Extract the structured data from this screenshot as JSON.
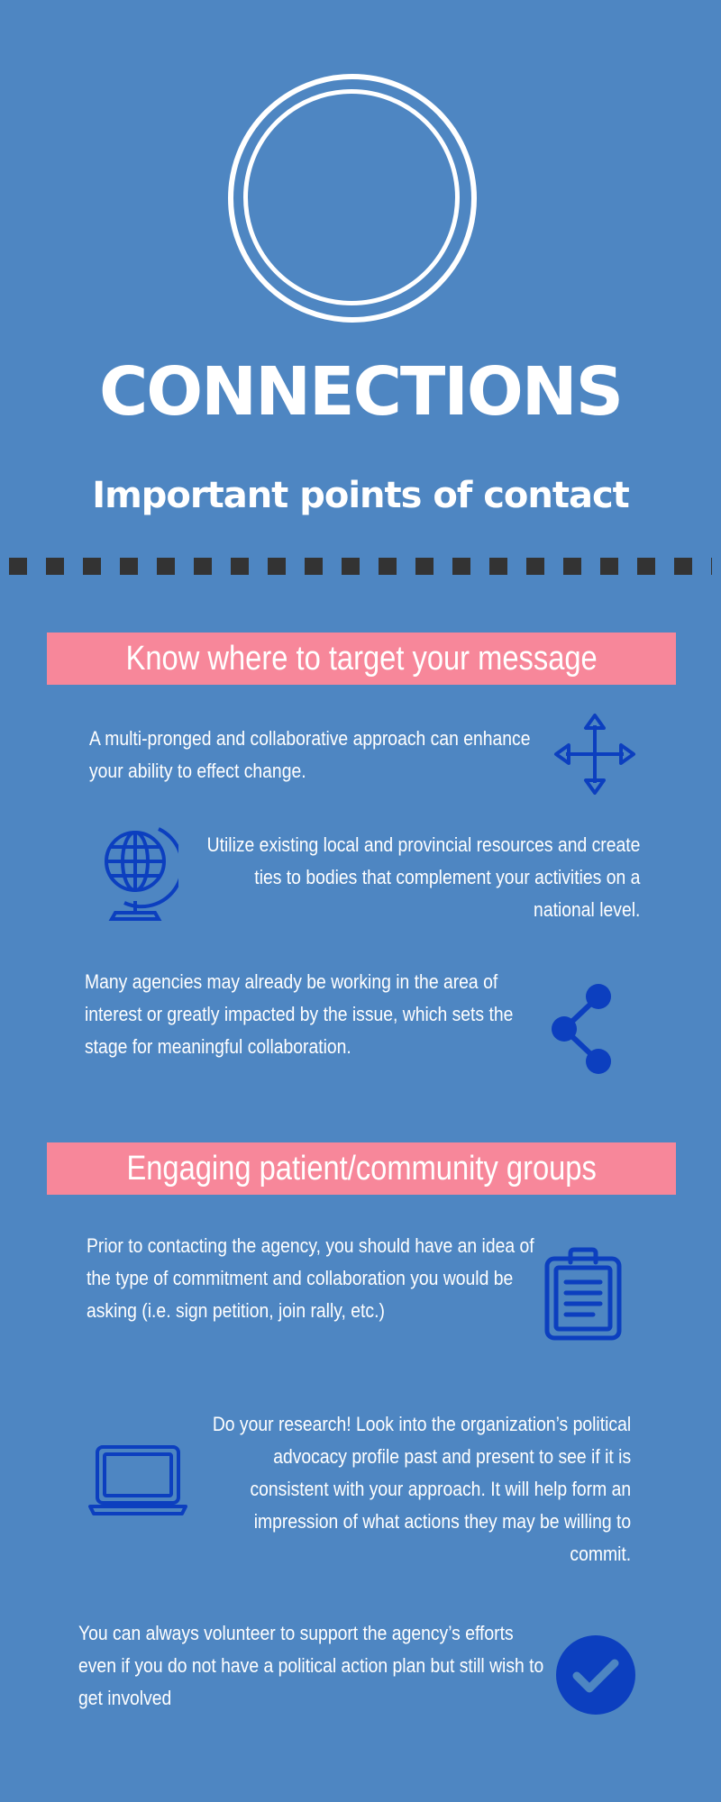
{
  "header": {
    "title": "CONNECTIONS",
    "subtitle": "Important points of contact"
  },
  "sections": [
    {
      "heading": "Know where to target your message",
      "items": [
        {
          "text": "A multi-pronged and collaborative approach can enhance your ability to effect change.",
          "icon": "move-arrows-icon"
        },
        {
          "text": "Utilize existing local and provincial resources and create ties to bodies that complement your activities on a national level.",
          "icon": "globe-icon"
        },
        {
          "text": "Many agencies may already be working in the area of interest or greatly impacted by the issue, which sets the stage for meaningful collaboration.",
          "icon": "share-icon"
        }
      ]
    },
    {
      "heading": "Engaging patient/community groups",
      "items": [
        {
          "text": "Prior to contacting the agency, you should have an idea of the type of commitment and collaboration you would be asking (i.e. sign petition, join rally, etc.)",
          "icon": "clipboard-icon"
        },
        {
          "text": "Do your research! Look into the organization’s political advocacy profile past and present to see if it is consistent with your approach. It will help form an impression of what actions they may be willing to commit.",
          "icon": "laptop-icon"
        },
        {
          "text": "You can always volunteer to support the agency’s efforts even if you do not have a political action plan but still wish to get involved",
          "icon": "check-circle-icon"
        }
      ]
    }
  ],
  "colors": {
    "background": "#4e86c2",
    "banner": "#f7879a",
    "icon": "#0c3fbf",
    "divider": "#333333",
    "text": "#ffffff"
  }
}
